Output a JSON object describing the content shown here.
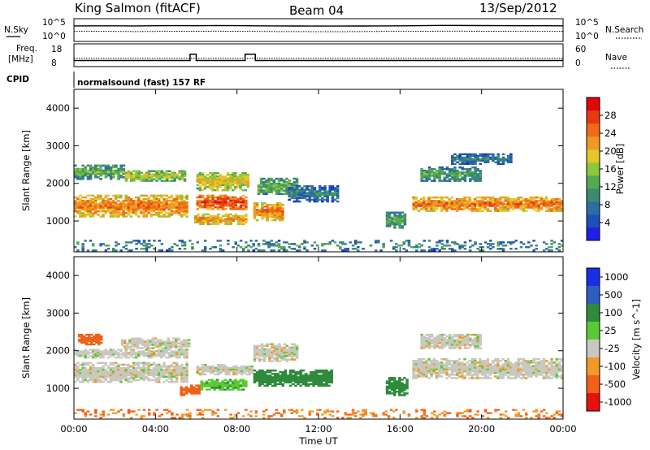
{
  "header": {
    "station": "King Salmon (fitACF)",
    "beam": "Beam 04",
    "date": "13/Sep/2012"
  },
  "noise_panel": {
    "left_label": "N.Sky",
    "right_label": "N.Search",
    "ticks": [
      "10^5",
      "10^0"
    ]
  },
  "freq_panel": {
    "left_label_1": "Freq.",
    "left_label_2": "[MHz]",
    "right_label": "Nave",
    "left_ticks": [
      "18",
      "8"
    ],
    "right_ticks": [
      "60",
      "0"
    ]
  },
  "cpid": {
    "label": "CPID",
    "program": "normalsound (fast) 157 RF"
  },
  "chart_data": [
    {
      "type": "line",
      "title": "N.Sky / N.Search",
      "yscale": "log",
      "ylim": [
        1,
        100000
      ],
      "x_hours": [
        0,
        1,
        2,
        3,
        4,
        5,
        6,
        7,
        8,
        9,
        10,
        11,
        12,
        13,
        14,
        15,
        16,
        17,
        18,
        19,
        20,
        21,
        22,
        23,
        24
      ],
      "series": [
        {
          "name": "N.Sky",
          "style": "solid",
          "values": [
            3000,
            3200,
            3100,
            3000,
            3300,
            3500,
            3400,
            3600,
            3500,
            3200,
            3000,
            2900,
            2800,
            2800,
            2900,
            3000,
            3100,
            3500,
            4000,
            3800,
            3600,
            3500,
            3400,
            3300,
            3200
          ]
        },
        {
          "name": "N.Search",
          "style": "dotted",
          "values": [
            150,
            160,
            150,
            140,
            150,
            160,
            160,
            170,
            160,
            150,
            140,
            140,
            130,
            130,
            140,
            150,
            150,
            160,
            170,
            170,
            160,
            160,
            150,
            150,
            150
          ]
        }
      ]
    },
    {
      "type": "line",
      "title": "Freq / Nave",
      "x_hours": [
        0,
        5.7,
        5.7,
        6.0,
        6.0,
        8.4,
        8.4,
        8.9,
        8.9,
        24
      ],
      "series": [
        {
          "name": "Freq.",
          "style": "solid",
          "ylim": [
            8,
            18
          ],
          "values": [
            10.5,
            10.5,
            13.5,
            13.5,
            10.5,
            10.5,
            13.5,
            13.5,
            10.5,
            10.5
          ]
        },
        {
          "name": "Nave",
          "style": "dotted",
          "ylim": [
            0,
            60
          ],
          "values": [
            21,
            21,
            21,
            21,
            21,
            21,
            21,
            21,
            21,
            21
          ]
        }
      ]
    },
    {
      "type": "heatmap",
      "title": "Power",
      "xlabel": "",
      "ylabel": "Slant Range [km]",
      "xlim": [
        0,
        24
      ],
      "ylim": [
        180,
        4500
      ],
      "yticks": [
        1000,
        2000,
        3000,
        4000
      ],
      "colorbar": {
        "label": "Power [dB]",
        "ticks": [
          "4",
          "8",
          "12",
          "16",
          "20",
          "24",
          "28"
        ],
        "colors": [
          "#1e1ee6",
          "#1f4eb8",
          "#2c6ea0",
          "#3d8a70",
          "#55a854",
          "#8cc83c",
          "#e6c628",
          "#ee9a22",
          "#ee6a18",
          "#e83a10",
          "#e00808"
        ]
      },
      "bands": [
        {
          "t0": 0.0,
          "t1": 5.6,
          "r0": 1100,
          "r1": 1700,
          "level": 0.6
        },
        {
          "t0": 0.0,
          "t1": 2.5,
          "r0": 2100,
          "r1": 2500,
          "level": 0.3
        },
        {
          "t0": 2.5,
          "t1": 5.5,
          "r0": 2050,
          "r1": 2350,
          "level": 0.4
        },
        {
          "t0": 5.9,
          "t1": 8.5,
          "r0": 900,
          "r1": 1200,
          "level": 0.55
        },
        {
          "t0": 6.0,
          "t1": 8.5,
          "r0": 1300,
          "r1": 1700,
          "level": 0.7
        },
        {
          "t0": 6.0,
          "t1": 8.6,
          "r0": 1800,
          "r1": 2300,
          "level": 0.45
        },
        {
          "t0": 8.8,
          "t1": 10.3,
          "r0": 1000,
          "r1": 1500,
          "level": 0.6
        },
        {
          "t0": 9.0,
          "t1": 11.0,
          "r0": 1700,
          "r1": 2150,
          "level": 0.3
        },
        {
          "t0": 10.5,
          "t1": 13.0,
          "r0": 1500,
          "r1": 1950,
          "level": 0.15
        },
        {
          "t0": 15.3,
          "t1": 16.3,
          "r0": 800,
          "r1": 1250,
          "level": 0.25
        },
        {
          "t0": 16.6,
          "t1": 24.0,
          "r0": 1250,
          "r1": 1650,
          "level": 0.62
        },
        {
          "t0": 17.0,
          "t1": 20.0,
          "r0": 2050,
          "r1": 2450,
          "level": 0.25
        },
        {
          "t0": 18.5,
          "t1": 21.5,
          "r0": 2500,
          "r1": 2800,
          "level": 0.15
        },
        {
          "t0": 0.0,
          "t1": 24.0,
          "r0": 200,
          "r1": 500,
          "level": 0.2
        }
      ]
    },
    {
      "type": "heatmap",
      "title": "Velocity",
      "xlabel": "Time UT",
      "ylabel": "Slant Range [km]",
      "xlim": [
        0,
        24
      ],
      "xticks": [
        "00:00",
        "04:00",
        "08:00",
        "12:00",
        "16:00",
        "20:00",
        "00:00"
      ],
      "ylim": [
        180,
        4500
      ],
      "yticks": [
        1000,
        2000,
        3000,
        4000
      ],
      "colorbar": {
        "label": "Velocity [m s^-1]",
        "ticks": [
          "1000",
          "500",
          "100",
          "25",
          "-25",
          "-100",
          "-500",
          "-1000"
        ],
        "colors": [
          "#1a2ee6",
          "#2c5ec0",
          "#2e8a3c",
          "#5cc834",
          "#c8c8c0",
          "#f09a28",
          "#f06018",
          "#e81010"
        ]
      },
      "bands": [
        {
          "t0": 0.0,
          "t1": 5.6,
          "r0": 1150,
          "r1": 1700,
          "vel": 0
        },
        {
          "t0": 0.0,
          "t1": 5.6,
          "r0": 1800,
          "r1": 2050,
          "vel": 0
        },
        {
          "t0": 0.2,
          "t1": 1.4,
          "r0": 2150,
          "r1": 2450,
          "vel": -300
        },
        {
          "t0": 2.3,
          "t1": 5.7,
          "r0": 2050,
          "r1": 2350,
          "vel": 0
        },
        {
          "t0": 5.2,
          "t1": 6.2,
          "r0": 800,
          "r1": 1100,
          "vel": -300
        },
        {
          "t0": 6.0,
          "t1": 8.8,
          "r0": 1350,
          "r1": 1650,
          "vel": 0
        },
        {
          "t0": 6.2,
          "t1": 8.5,
          "r0": 950,
          "r1": 1250,
          "vel": 80
        },
        {
          "t0": 8.8,
          "t1": 12.7,
          "r0": 1050,
          "r1": 1500,
          "vel": 150
        },
        {
          "t0": 8.8,
          "t1": 11.0,
          "r0": 1700,
          "r1": 2200,
          "vel": 0
        },
        {
          "t0": 15.3,
          "t1": 16.4,
          "r0": 800,
          "r1": 1300,
          "vel": 150
        },
        {
          "t0": 16.6,
          "t1": 24.0,
          "r0": 1250,
          "r1": 1800,
          "vel": 0
        },
        {
          "t0": 17.0,
          "t1": 20.0,
          "r0": 2050,
          "r1": 2450,
          "vel": 0
        },
        {
          "t0": 0.0,
          "t1": 24.0,
          "r0": 200,
          "r1": 450,
          "vel": -100
        }
      ]
    }
  ]
}
